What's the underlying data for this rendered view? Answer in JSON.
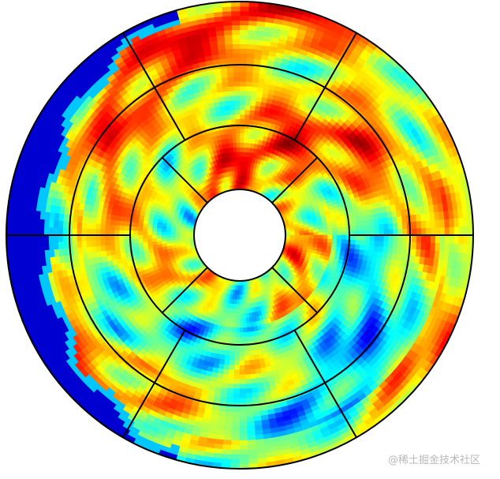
{
  "watermark": "@稀土掘金技术社区"
}
